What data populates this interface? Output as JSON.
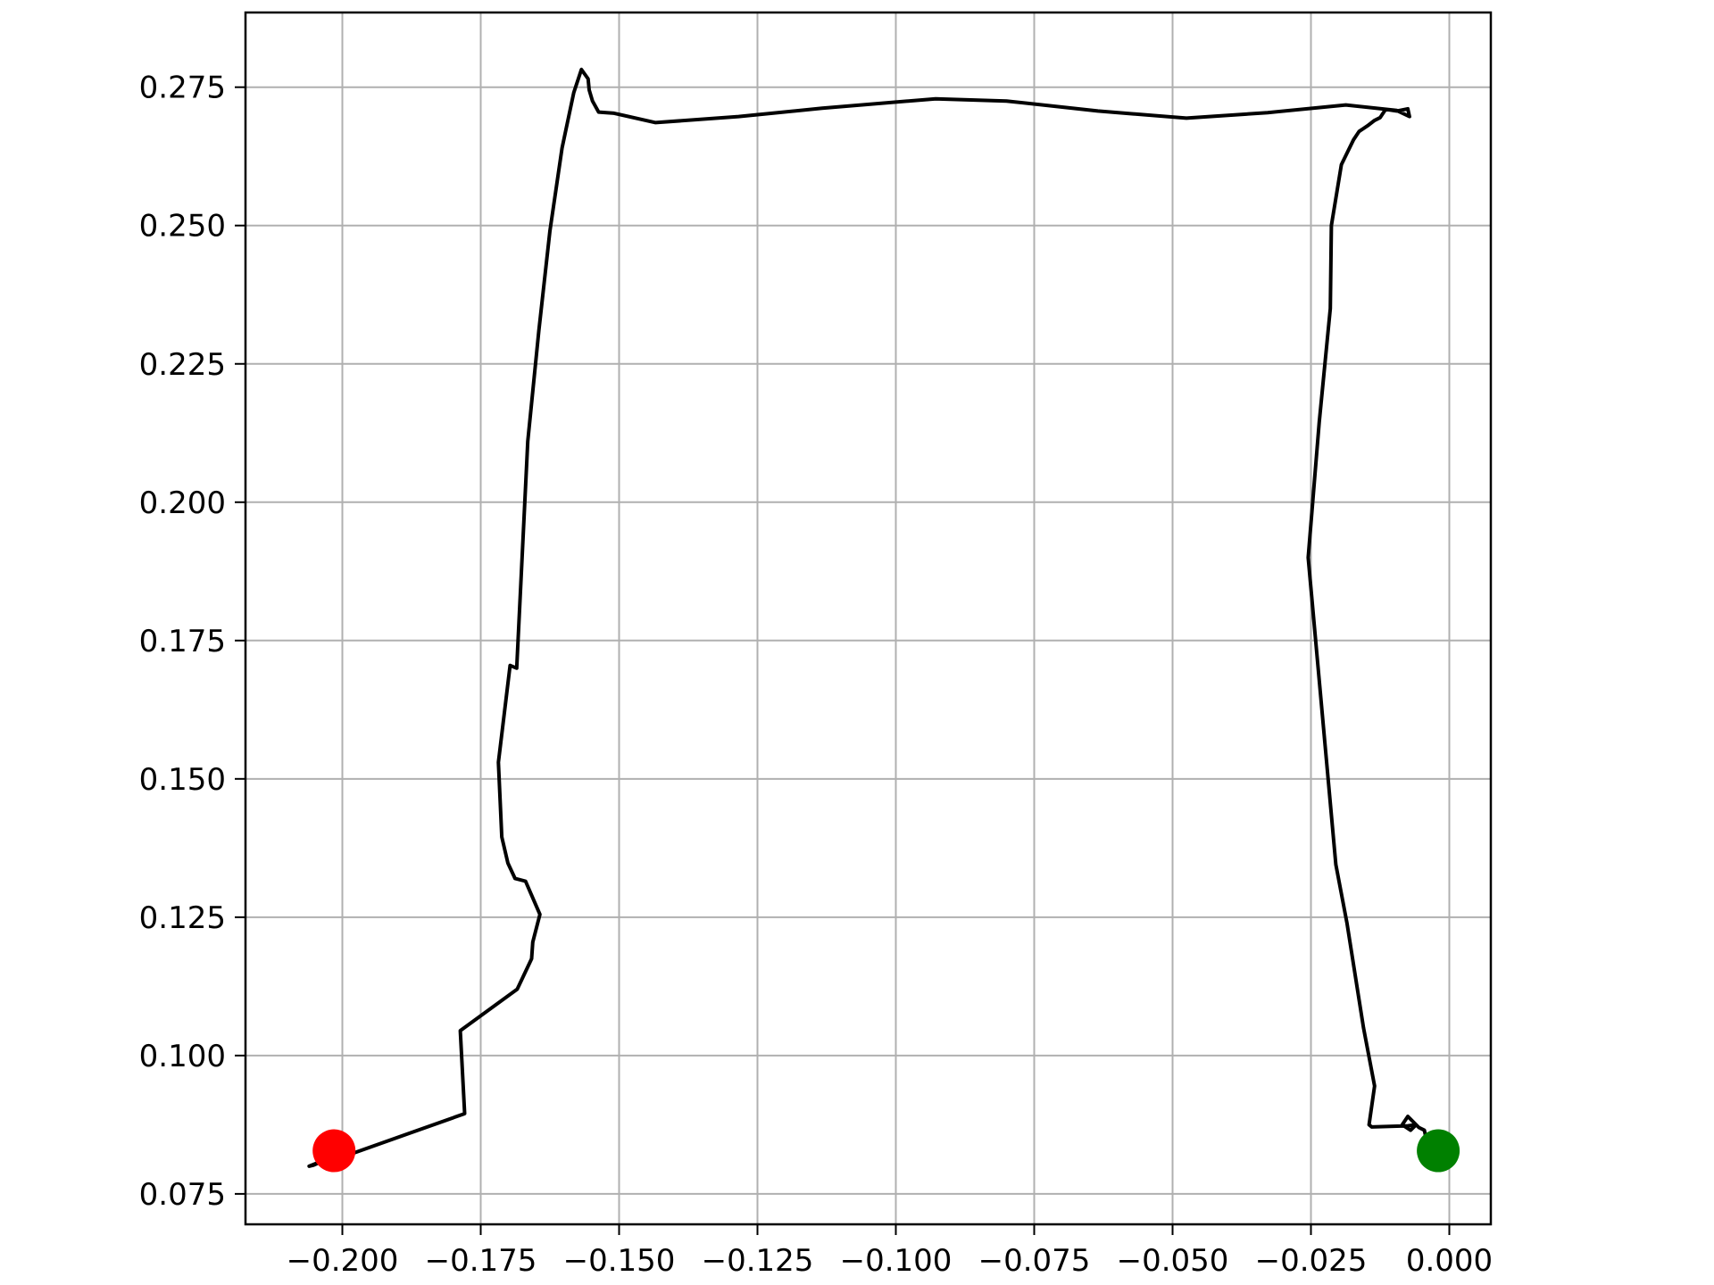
{
  "chart_data": {
    "type": "line",
    "title": "",
    "xlabel": "",
    "ylabel": "",
    "xlim": [
      -0.2175,
      0.0075
    ],
    "ylim": [
      0.0695,
      0.2885
    ],
    "grid": true,
    "x_ticks": [
      -0.2,
      -0.175,
      -0.15,
      -0.125,
      -0.1,
      -0.075,
      -0.05,
      -0.025,
      0.0
    ],
    "x_tick_labels": [
      "−0.200",
      "−0.175",
      "−0.150",
      "−0.125",
      "−0.100",
      "−0.075",
      "−0.050",
      "−0.025",
      "0.000"
    ],
    "y_ticks": [
      0.075,
      0.1,
      0.125,
      0.15,
      0.175,
      0.2,
      0.225,
      0.25,
      0.275
    ],
    "y_tick_labels": [
      "0.075",
      "0.100",
      "0.125",
      "0.150",
      "0.175",
      "0.200",
      "0.225",
      "0.250",
      "0.275"
    ],
    "colors": {
      "path": "#000000",
      "start": "#008000",
      "end": "#ff0000",
      "grid": "#b0b0b0",
      "axes": "#000000"
    },
    "series": [
      {
        "x": [
          -0.002,
          -0.004,
          -0.0045,
          -0.0055,
          -0.0075,
          -0.0085,
          -0.007,
          -0.006,
          -0.0075,
          -0.014,
          -0.0145,
          -0.0135,
          -0.0155,
          -0.0185,
          -0.0205,
          -0.0255,
          -0.0235,
          -0.0215,
          -0.0213,
          -0.0195,
          -0.0173,
          -0.0163,
          -0.0148,
          -0.0135,
          -0.0125,
          -0.0115,
          -0.0095,
          -0.0075,
          -0.0072,
          -0.0095,
          -0.0187,
          -0.0328,
          -0.0475,
          -0.0635,
          -0.08,
          -0.0928,
          -0.1133,
          -0.1284,
          -0.1434,
          -0.1509,
          -0.1537,
          -0.1548,
          -0.1554,
          -0.1556,
          -0.1568,
          -0.1582,
          -0.1603,
          -0.1625,
          -0.1645,
          -0.1665,
          -0.1685,
          -0.1697,
          -0.1718,
          -0.1712,
          -0.1701,
          -0.1688,
          -0.1669,
          -0.1643,
          -0.1656,
          -0.1658,
          -0.1684,
          -0.1787,
          -0.1779,
          -0.1982,
          -0.201,
          -0.2012,
          -0.2017,
          -0.203,
          -0.206,
          -0.2052,
          -0.2025,
          -0.2006,
          -0.1995
        ],
        "y": [
          0.083,
          0.084,
          0.0865,
          0.087,
          0.089,
          0.0875,
          0.0865,
          0.0875,
          0.0873,
          0.0871,
          0.0875,
          0.0945,
          0.105,
          0.124,
          0.1345,
          0.19,
          0.2145,
          0.235,
          0.25,
          0.261,
          0.2655,
          0.267,
          0.268,
          0.269,
          0.2695,
          0.271,
          0.2707,
          0.2711,
          0.2697,
          0.2708,
          0.2718,
          0.2704,
          0.2694,
          0.2707,
          0.2725,
          0.2729,
          0.2712,
          0.2697,
          0.2686,
          0.2703,
          0.2705,
          0.2725,
          0.2745,
          0.2765,
          0.2782,
          0.274,
          0.264,
          0.249,
          0.231,
          0.211,
          0.17,
          0.1705,
          0.153,
          0.1395,
          0.1348,
          0.132,
          0.1315,
          0.1255,
          0.1205,
          0.1175,
          0.112,
          0.1045,
          0.0895,
          0.0823,
          0.0833,
          0.0818,
          0.0823,
          0.0812,
          0.08,
          0.0802,
          0.0814,
          0.0817,
          0.0817
        ]
      }
    ],
    "markers": [
      {
        "role": "start",
        "x": -0.002,
        "y": 0.0828,
        "color": "#008000"
      },
      {
        "role": "end",
        "x": -0.2015,
        "y": 0.0828,
        "color": "#ff0000"
      }
    ]
  }
}
